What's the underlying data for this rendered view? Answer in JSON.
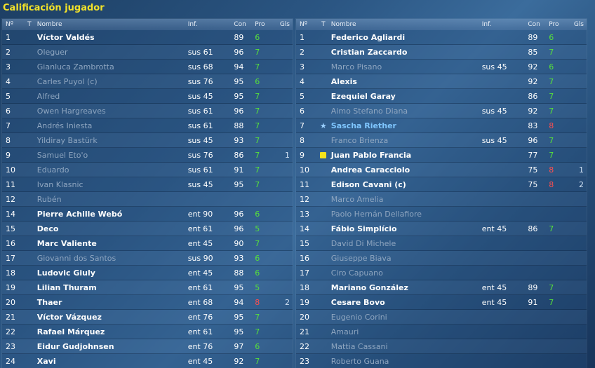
{
  "title": "Calificación jugador",
  "columns": {
    "num": "Nº",
    "t": "T",
    "name": "Nombre",
    "inf": "Inf.",
    "con": "Con",
    "pro": "Pro",
    "gls": "Gls"
  },
  "colors": {
    "title": "#f2e22a",
    "green": "#57e03a",
    "red": "#ff4f4f",
    "highlight": "#7fc6ff"
  },
  "left_team": [
    {
      "num": "1",
      "name": "Víctor Valdés",
      "inf": "",
      "con": "89",
      "pro": "6",
      "gls": "",
      "active": true,
      "pro_color": "green",
      "icon": ""
    },
    {
      "num": "2",
      "name": "Oleguer",
      "inf": "sus 61",
      "con": "96",
      "pro": "7",
      "gls": "",
      "active": false,
      "pro_color": "green",
      "icon": ""
    },
    {
      "num": "3",
      "name": "Gianluca Zambrotta",
      "inf": "sus 68",
      "con": "94",
      "pro": "7",
      "gls": "",
      "active": false,
      "pro_color": "green",
      "icon": ""
    },
    {
      "num": "4",
      "name": "Carles Puyol (c)",
      "inf": "sus 76",
      "con": "95",
      "pro": "6",
      "gls": "",
      "active": false,
      "pro_color": "green",
      "icon": ""
    },
    {
      "num": "5",
      "name": "Alfred",
      "inf": "sus 45",
      "con": "95",
      "pro": "7",
      "gls": "",
      "active": false,
      "pro_color": "green",
      "icon": ""
    },
    {
      "num": "6",
      "name": "Owen Hargreaves",
      "inf": "sus 61",
      "con": "96",
      "pro": "7",
      "gls": "",
      "active": false,
      "pro_color": "green",
      "icon": ""
    },
    {
      "num": "7",
      "name": "Andrés Iniesta",
      "inf": "sus 61",
      "con": "88",
      "pro": "7",
      "gls": "",
      "active": false,
      "pro_color": "green",
      "icon": ""
    },
    {
      "num": "8",
      "name": "Yildiray Bastürk",
      "inf": "sus 45",
      "con": "93",
      "pro": "7",
      "gls": "",
      "active": false,
      "pro_color": "green",
      "icon": ""
    },
    {
      "num": "9",
      "name": "Samuel Eto'o",
      "inf": "sus 76",
      "con": "86",
      "pro": "7",
      "gls": "1",
      "active": false,
      "pro_color": "green",
      "icon": ""
    },
    {
      "num": "10",
      "name": "Eduardo",
      "inf": "sus 61",
      "con": "91",
      "pro": "7",
      "gls": "",
      "active": false,
      "pro_color": "green",
      "icon": ""
    },
    {
      "num": "11",
      "name": "Ivan Klasnic",
      "inf": "sus 45",
      "con": "95",
      "pro": "7",
      "gls": "",
      "active": false,
      "pro_color": "green",
      "icon": ""
    },
    {
      "num": "12",
      "name": "Rubén",
      "inf": "",
      "con": "",
      "pro": "",
      "gls": "",
      "active": false,
      "pro_color": "green",
      "icon": ""
    },
    {
      "num": "14",
      "name": "Pierre Achille Webó",
      "inf": "ent 90",
      "con": "96",
      "pro": "6",
      "gls": "",
      "active": true,
      "pro_color": "green",
      "icon": ""
    },
    {
      "num": "15",
      "name": "Deco",
      "inf": "ent 61",
      "con": "96",
      "pro": "5",
      "gls": "",
      "active": true,
      "pro_color": "green",
      "icon": ""
    },
    {
      "num": "16",
      "name": "Marc Valiente",
      "inf": "ent 45",
      "con": "90",
      "pro": "7",
      "gls": "",
      "active": true,
      "pro_color": "green",
      "icon": ""
    },
    {
      "num": "17",
      "name": "Giovanni dos Santos",
      "inf": "sus 90",
      "con": "93",
      "pro": "6",
      "gls": "",
      "active": false,
      "pro_color": "green",
      "icon": ""
    },
    {
      "num": "18",
      "name": "Ludovic Giuly",
      "inf": "ent 45",
      "con": "88",
      "pro": "6",
      "gls": "",
      "active": true,
      "pro_color": "green",
      "icon": ""
    },
    {
      "num": "19",
      "name": "Lilian Thuram",
      "inf": "ent 61",
      "con": "95",
      "pro": "5",
      "gls": "",
      "active": true,
      "pro_color": "green",
      "icon": ""
    },
    {
      "num": "20",
      "name": "Thaer",
      "inf": "ent 68",
      "con": "94",
      "pro": "8",
      "gls": "2",
      "active": true,
      "pro_color": "red",
      "icon": ""
    },
    {
      "num": "21",
      "name": "Víctor Vázquez",
      "inf": "ent 76",
      "con": "95",
      "pro": "7",
      "gls": "",
      "active": true,
      "pro_color": "green",
      "icon": ""
    },
    {
      "num": "22",
      "name": "Rafael Márquez",
      "inf": "ent 61",
      "con": "95",
      "pro": "7",
      "gls": "",
      "active": true,
      "pro_color": "green",
      "icon": ""
    },
    {
      "num": "23",
      "name": "Eidur Gudjohnsen",
      "inf": "ent 76",
      "con": "97",
      "pro": "6",
      "gls": "",
      "active": true,
      "pro_color": "green",
      "icon": ""
    },
    {
      "num": "24",
      "name": "Xavi",
      "inf": "ent 45",
      "con": "92",
      "pro": "7",
      "gls": "",
      "active": true,
      "pro_color": "green",
      "icon": ""
    }
  ],
  "right_team": [
    {
      "num": "1",
      "name": "Federico Agliardi",
      "inf": "",
      "con": "89",
      "pro": "6",
      "gls": "",
      "active": true,
      "pro_color": "green",
      "icon": ""
    },
    {
      "num": "2",
      "name": "Cristian Zaccardo",
      "inf": "",
      "con": "85",
      "pro": "7",
      "gls": "",
      "active": true,
      "pro_color": "green",
      "icon": ""
    },
    {
      "num": "3",
      "name": "Marco Pisano",
      "inf": "sus 45",
      "con": "92",
      "pro": "6",
      "gls": "",
      "active": false,
      "pro_color": "green",
      "icon": ""
    },
    {
      "num": "4",
      "name": "Alexis",
      "inf": "",
      "con": "92",
      "pro": "7",
      "gls": "",
      "active": true,
      "pro_color": "green",
      "icon": ""
    },
    {
      "num": "5",
      "name": "Ezequiel Garay",
      "inf": "",
      "con": "86",
      "pro": "7",
      "gls": "",
      "active": true,
      "pro_color": "green",
      "icon": ""
    },
    {
      "num": "6",
      "name": "Aimo Stefano Diana",
      "inf": "sus 45",
      "con": "92",
      "pro": "7",
      "gls": "",
      "active": false,
      "pro_color": "green",
      "icon": ""
    },
    {
      "num": "7",
      "name": "Sascha Riether",
      "inf": "",
      "con": "83",
      "pro": "8",
      "gls": "",
      "active": true,
      "highlight": true,
      "pro_color": "red",
      "icon": "star"
    },
    {
      "num": "8",
      "name": "Franco Brienza",
      "inf": "sus 45",
      "con": "96",
      "pro": "7",
      "gls": "",
      "active": false,
      "pro_color": "green",
      "icon": ""
    },
    {
      "num": "9",
      "name": "Juan Pablo Francia",
      "inf": "",
      "con": "77",
      "pro": "7",
      "gls": "",
      "active": true,
      "pro_color": "green",
      "icon": "yellow-card"
    },
    {
      "num": "10",
      "name": "Andrea Caracciolo",
      "inf": "",
      "con": "75",
      "pro": "8",
      "gls": "1",
      "active": true,
      "pro_color": "red",
      "icon": ""
    },
    {
      "num": "11",
      "name": "Edison Cavani (c)",
      "inf": "",
      "con": "75",
      "pro": "8",
      "gls": "2",
      "active": true,
      "pro_color": "red",
      "icon": ""
    },
    {
      "num": "12",
      "name": "Marco Amelia",
      "inf": "",
      "con": "",
      "pro": "",
      "gls": "",
      "active": false,
      "pro_color": "green",
      "icon": ""
    },
    {
      "num": "13",
      "name": "Paolo Hernán Dellafiore",
      "inf": "",
      "con": "",
      "pro": "",
      "gls": "",
      "active": false,
      "pro_color": "green",
      "icon": ""
    },
    {
      "num": "14",
      "name": "Fábio Simplício",
      "inf": "ent 45",
      "con": "86",
      "pro": "7",
      "gls": "",
      "active": true,
      "pro_color": "green",
      "icon": ""
    },
    {
      "num": "15",
      "name": "David Di Michele",
      "inf": "",
      "con": "",
      "pro": "",
      "gls": "",
      "active": false,
      "pro_color": "green",
      "icon": ""
    },
    {
      "num": "16",
      "name": "Giuseppe Biava",
      "inf": "",
      "con": "",
      "pro": "",
      "gls": "",
      "active": false,
      "pro_color": "green",
      "icon": ""
    },
    {
      "num": "17",
      "name": "Ciro Capuano",
      "inf": "",
      "con": "",
      "pro": "",
      "gls": "",
      "active": false,
      "pro_color": "green",
      "icon": ""
    },
    {
      "num": "18",
      "name": "Mariano González",
      "inf": "ent 45",
      "con": "89",
      "pro": "7",
      "gls": "",
      "active": true,
      "pro_color": "green",
      "icon": ""
    },
    {
      "num": "19",
      "name": "Cesare Bovo",
      "inf": "ent 45",
      "con": "91",
      "pro": "7",
      "gls": "",
      "active": true,
      "pro_color": "green",
      "icon": ""
    },
    {
      "num": "20",
      "name": "Eugenio Corini",
      "inf": "",
      "con": "",
      "pro": "",
      "gls": "",
      "active": false,
      "pro_color": "green",
      "icon": ""
    },
    {
      "num": "21",
      "name": "Amauri",
      "inf": "",
      "con": "",
      "pro": "",
      "gls": "",
      "active": false,
      "pro_color": "green",
      "icon": ""
    },
    {
      "num": "22",
      "name": "Mattia Cassani",
      "inf": "",
      "con": "",
      "pro": "",
      "gls": "",
      "active": false,
      "pro_color": "green",
      "icon": ""
    },
    {
      "num": "23",
      "name": "Roberto Guana",
      "inf": "",
      "con": "",
      "pro": "",
      "gls": "",
      "active": false,
      "pro_color": "green",
      "icon": ""
    }
  ]
}
